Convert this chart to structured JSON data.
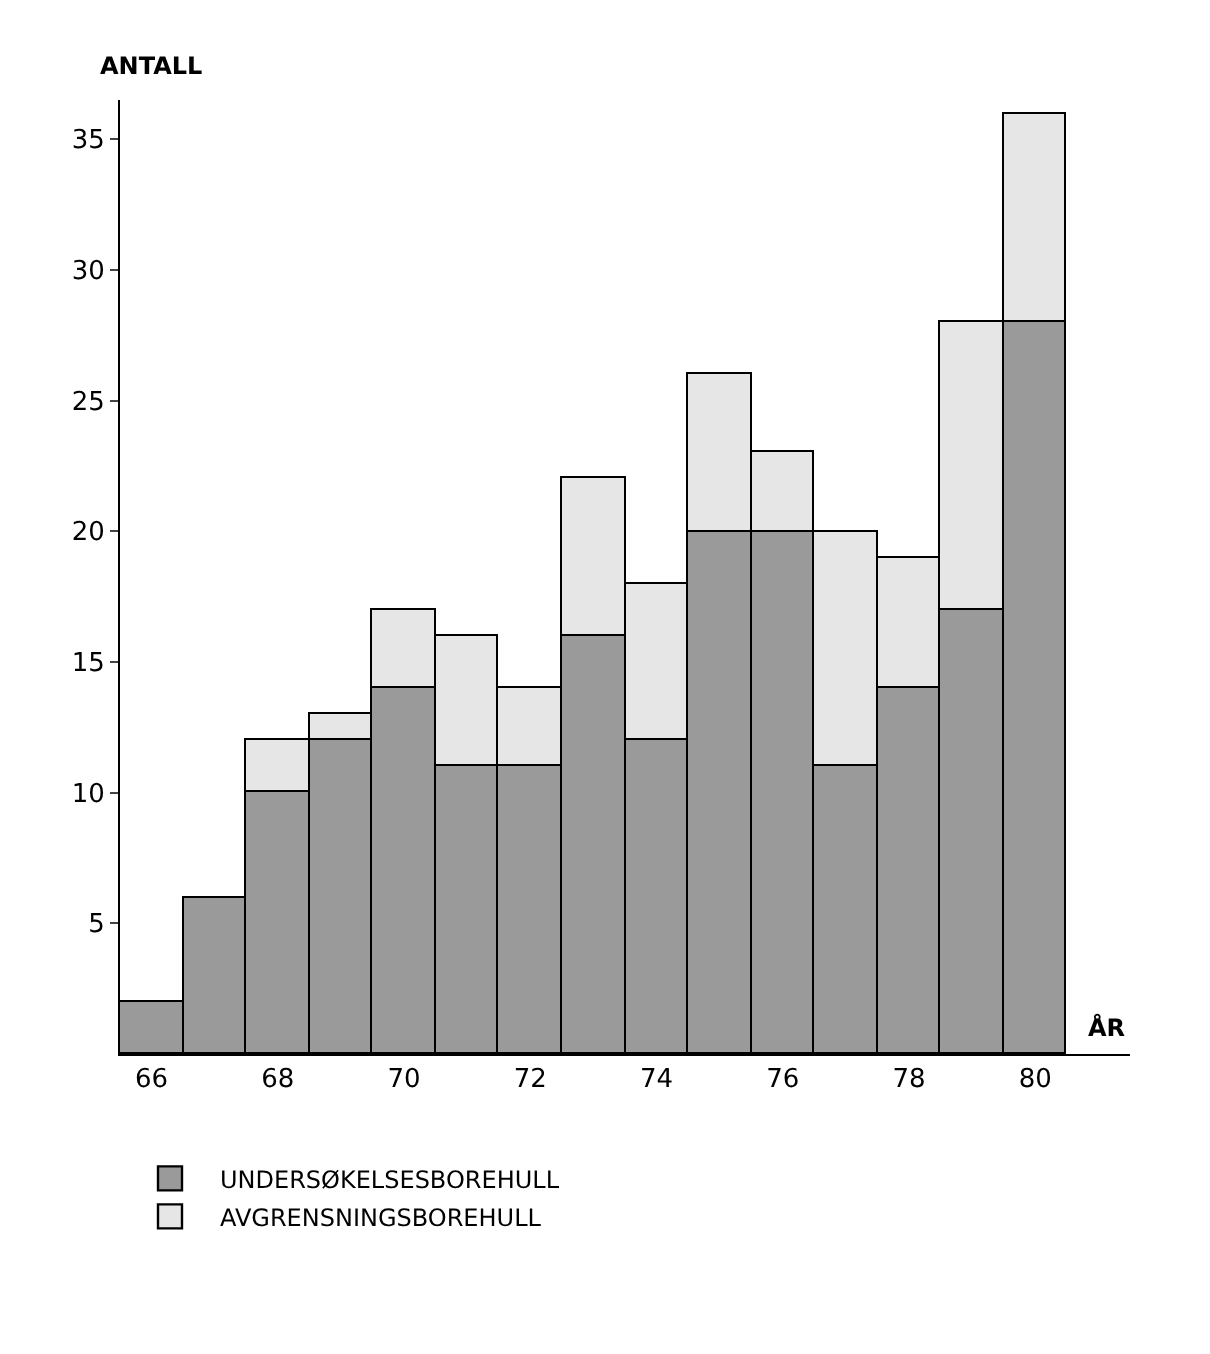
{
  "chart_data": {
    "type": "bar",
    "stacked": true,
    "xlabel": "ÅR",
    "ylabel": "ANTALL",
    "x": [
      66,
      67,
      68,
      69,
      70,
      71,
      72,
      73,
      74,
      75,
      76,
      77,
      78,
      79,
      80
    ],
    "series": [
      {
        "name": "UNDERSØKELSESBOREHULL",
        "color": "#9a9a9a",
        "values": [
          2,
          6,
          10,
          12,
          14,
          11,
          11,
          16,
          12,
          20,
          20,
          11,
          14,
          17,
          28
        ]
      },
      {
        "name": "AVGRENSNINGSBOREHULL",
        "color": "#e6e6e6",
        "values": [
          null,
          null,
          2,
          1,
          3,
          5,
          3,
          6,
          6,
          6,
          3,
          9,
          5,
          11,
          8
        ]
      }
    ],
    "xlim": [
      65.5,
      81.5
    ],
    "xticks": [
      66,
      68,
      70,
      72,
      74,
      76,
      78,
      80
    ],
    "ylim": [
      0,
      36.5
    ],
    "yticks": [
      5,
      10,
      15,
      20,
      25,
      30,
      35
    ],
    "legend": "bottom"
  }
}
